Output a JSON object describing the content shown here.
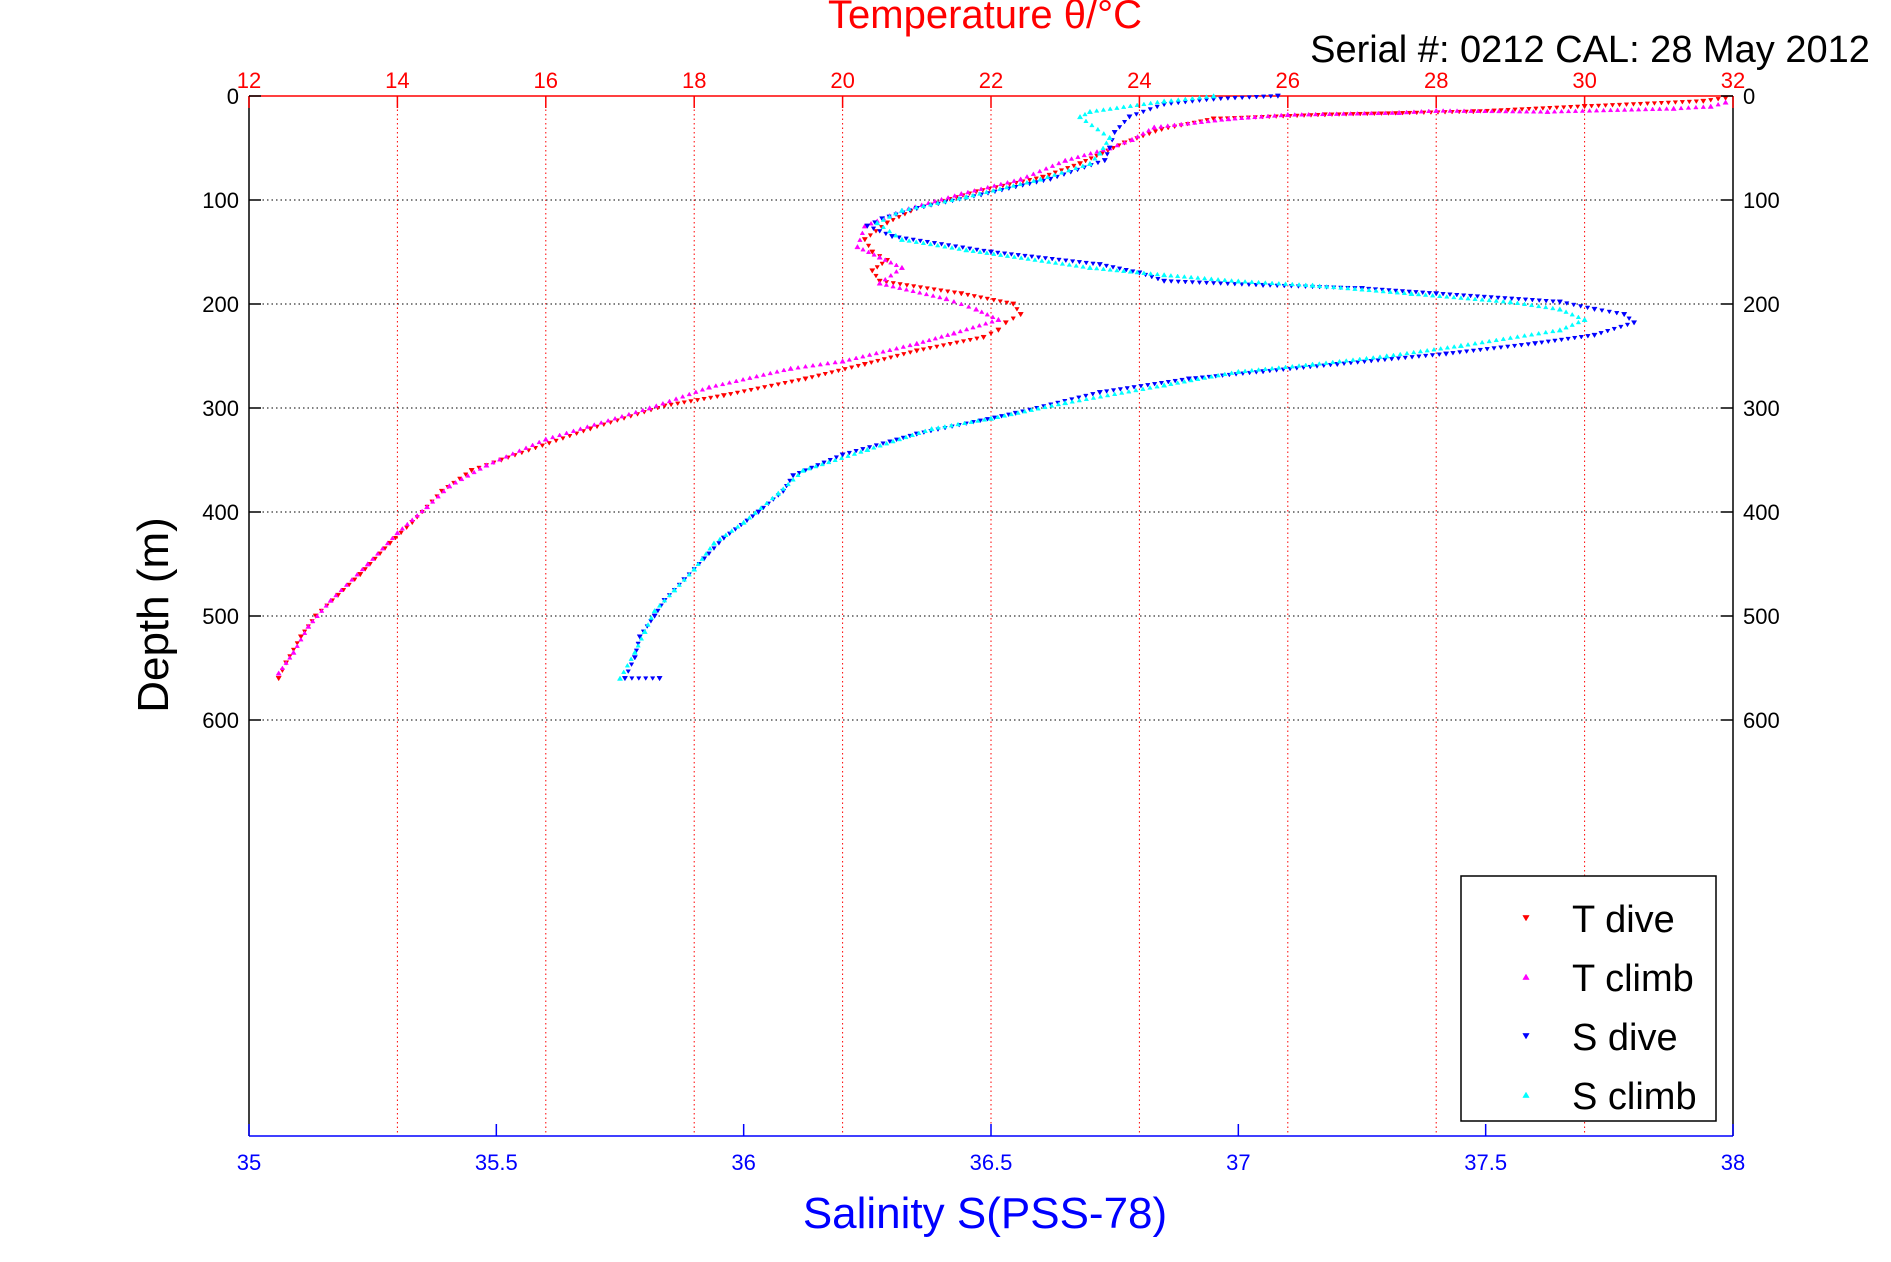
{
  "chart_data": {
    "type": "scatter",
    "title": "Temperature θ/°C",
    "subtitle": "Serial #: 0212  CAL: 28 May 2012",
    "ylabel": "Depth (m)",
    "xlabel_bottom": "Salinity S(PSS-78)",
    "xlabel_top": "Temperature θ/°C",
    "ylim": [
      0,
      1000
    ],
    "y_reversed": true,
    "y_ticks": [
      0,
      100,
      200,
      300,
      400,
      500,
      600
    ],
    "x_bottom": {
      "range": [
        35,
        38
      ],
      "ticks": [
        35,
        35.5,
        36,
        36.5,
        37,
        37.5,
        38
      ]
    },
    "x_top": {
      "range": [
        12,
        32
      ],
      "ticks": [
        12,
        14,
        16,
        18,
        20,
        22,
        24,
        26,
        28,
        30,
        32
      ]
    },
    "grid": true,
    "legend_position": "bottom-right",
    "colors": {
      "temperature_axis": "#ff0000",
      "salinity_axis": "#0000ff",
      "t_dive": "#ff0000",
      "t_climb": "#ff00ff",
      "s_dive": "#0000ff",
      "s_climb": "#00ffff"
    },
    "series": [
      {
        "name": "T dive",
        "axis": "top",
        "color": "#ff0000",
        "marker": "triangle-down",
        "points": [
          [
            31.9,
            2
          ],
          [
            31.6,
            5
          ],
          [
            30.0,
            10
          ],
          [
            28.5,
            15
          ],
          [
            26.5,
            18
          ],
          [
            25.0,
            22
          ],
          [
            24.3,
            32
          ],
          [
            23.8,
            45
          ],
          [
            23.5,
            55
          ],
          [
            23.2,
            65
          ],
          [
            22.7,
            78
          ],
          [
            21.8,
            92
          ],
          [
            21.0,
            108
          ],
          [
            20.6,
            122
          ],
          [
            20.3,
            138
          ],
          [
            20.4,
            150
          ],
          [
            20.6,
            158
          ],
          [
            20.4,
            168
          ],
          [
            20.5,
            178
          ],
          [
            21.6,
            190
          ],
          [
            22.3,
            200
          ],
          [
            22.4,
            210
          ],
          [
            22.2,
            218
          ],
          [
            22.1,
            225
          ],
          [
            21.9,
            232
          ],
          [
            21.0,
            245
          ],
          [
            20.3,
            258
          ],
          [
            19.5,
            272
          ],
          [
            18.4,
            288
          ],
          [
            17.6,
            298
          ],
          [
            16.6,
            320
          ],
          [
            15.4,
            350
          ],
          [
            15.0,
            360
          ],
          [
            14.6,
            380
          ],
          [
            14.2,
            410
          ],
          [
            13.9,
            430
          ],
          [
            13.5,
            460
          ],
          [
            13.2,
            480
          ],
          [
            12.9,
            500
          ],
          [
            12.7,
            520
          ],
          [
            12.5,
            545
          ],
          [
            12.4,
            560
          ]
        ]
      },
      {
        "name": "T climb",
        "axis": "top",
        "color": "#ff00ff",
        "marker": "triangle-up",
        "points": [
          [
            31.9,
            6
          ],
          [
            31.7,
            10
          ],
          [
            31.2,
            12
          ],
          [
            29.5,
            15
          ],
          [
            28.0,
            14
          ],
          [
            27.5,
            16
          ],
          [
            26.0,
            18
          ],
          [
            25.2,
            22
          ],
          [
            24.2,
            30
          ],
          [
            23.9,
            42
          ],
          [
            23.6,
            50
          ],
          [
            23.0,
            62
          ],
          [
            22.4,
            80
          ],
          [
            21.6,
            94
          ],
          [
            20.8,
            110
          ],
          [
            20.3,
            125
          ],
          [
            20.2,
            145
          ],
          [
            20.5,
            155
          ],
          [
            20.8,
            165
          ],
          [
            20.5,
            180
          ],
          [
            21.4,
            195
          ],
          [
            21.8,
            205
          ],
          [
            22.1,
            215
          ],
          [
            21.5,
            228
          ],
          [
            21.0,
            238
          ],
          [
            20.0,
            255
          ],
          [
            19.3,
            262
          ],
          [
            18.2,
            280
          ],
          [
            17.4,
            300
          ],
          [
            16.0,
            330
          ],
          [
            15.2,
            355
          ],
          [
            14.7,
            375
          ],
          [
            14.4,
            395
          ],
          [
            14.0,
            420
          ],
          [
            13.6,
            450
          ],
          [
            13.1,
            485
          ],
          [
            12.8,
            510
          ],
          [
            12.6,
            535
          ],
          [
            12.4,
            555
          ]
        ]
      },
      {
        "name": "S dive",
        "axis": "bottom",
        "color": "#0000ff",
        "marker": "triangle-down",
        "points": [
          [
            37.08,
            0
          ],
          [
            36.95,
            3
          ],
          [
            36.85,
            8
          ],
          [
            36.78,
            20
          ],
          [
            36.75,
            35
          ],
          [
            36.74,
            50
          ],
          [
            36.73,
            62
          ],
          [
            36.62,
            80
          ],
          [
            36.48,
            95
          ],
          [
            36.35,
            108
          ],
          [
            36.28,
            118
          ],
          [
            36.25,
            125
          ],
          [
            36.3,
            135
          ],
          [
            36.5,
            150
          ],
          [
            36.72,
            162
          ],
          [
            36.8,
            170
          ],
          [
            36.85,
            178
          ],
          [
            37.05,
            182
          ],
          [
            37.25,
            185
          ],
          [
            37.4,
            190
          ],
          [
            37.65,
            198
          ],
          [
            37.72,
            205
          ],
          [
            37.78,
            210
          ],
          [
            37.8,
            218
          ],
          [
            37.72,
            230
          ],
          [
            37.6,
            238
          ],
          [
            37.42,
            248
          ],
          [
            37.2,
            258
          ],
          [
            37.05,
            265
          ],
          [
            36.9,
            272
          ],
          [
            36.72,
            285
          ],
          [
            36.55,
            305
          ],
          [
            36.35,
            325
          ],
          [
            36.2,
            345
          ],
          [
            36.1,
            365
          ],
          [
            36.08,
            380
          ],
          [
            36.03,
            400
          ],
          [
            35.96,
            425
          ],
          [
            35.92,
            445
          ],
          [
            35.88,
            465
          ],
          [
            35.84,
            485
          ],
          [
            35.82,
            500
          ],
          [
            35.79,
            520
          ],
          [
            35.78,
            540
          ],
          [
            35.76,
            560
          ],
          [
            35.83,
            560
          ]
        ]
      },
      {
        "name": "S climb",
        "axis": "bottom",
        "color": "#00ffff",
        "marker": "triangle-up",
        "points": [
          [
            36.95,
            0
          ],
          [
            36.85,
            5
          ],
          [
            36.7,
            15
          ],
          [
            36.68,
            20
          ],
          [
            36.74,
            40
          ],
          [
            36.72,
            55
          ],
          [
            36.7,
            65
          ],
          [
            36.6,
            80
          ],
          [
            36.45,
            97
          ],
          [
            36.32,
            110
          ],
          [
            36.27,
            122
          ],
          [
            36.32,
            138
          ],
          [
            36.45,
            148
          ],
          [
            36.7,
            165
          ],
          [
            36.85,
            172
          ],
          [
            37.0,
            178
          ],
          [
            37.15,
            182
          ],
          [
            37.35,
            190
          ],
          [
            37.55,
            198
          ],
          [
            37.65,
            205
          ],
          [
            37.7,
            215
          ],
          [
            37.65,
            225
          ],
          [
            37.45,
            240
          ],
          [
            37.3,
            250
          ],
          [
            37.15,
            258
          ],
          [
            37.0,
            265
          ],
          [
            36.85,
            278
          ],
          [
            36.65,
            295
          ],
          [
            36.5,
            310
          ],
          [
            36.38,
            320
          ],
          [
            36.25,
            340
          ],
          [
            36.12,
            360
          ],
          [
            36.07,
            382
          ],
          [
            36.0,
            410
          ],
          [
            35.94,
            430
          ],
          [
            35.9,
            455
          ],
          [
            35.86,
            475
          ],
          [
            35.82,
            495
          ],
          [
            35.8,
            515
          ],
          [
            35.78,
            535
          ],
          [
            35.75,
            560
          ]
        ]
      }
    ]
  }
}
